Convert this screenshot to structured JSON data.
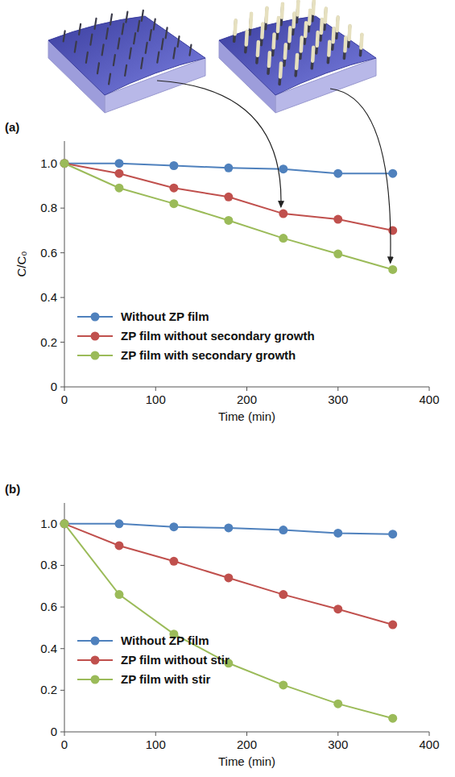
{
  "chart_data": [
    {
      "type": "line",
      "panel_label": "(a)",
      "x_label": "Time (min)",
      "y_label": "C/C₀",
      "x": [
        0,
        60,
        120,
        180,
        240,
        300,
        360
      ],
      "xlim": [
        0,
        400
      ],
      "xticks": [
        0,
        100,
        200,
        300,
        400
      ],
      "ylim": [
        0,
        1.1
      ],
      "yticks": [
        0,
        0.2,
        0.4,
        0.6,
        0.8,
        {
          "value": 1,
          "label": "1.0"
        }
      ],
      "grid": false,
      "legend": "lower left",
      "marker": "circle",
      "series": [
        {
          "name": "Without ZP film",
          "color": "#4f81bd",
          "values": [
            1.0,
            1.0,
            0.99,
            0.98,
            0.975,
            0.955,
            0.955
          ]
        },
        {
          "name": "ZP film without secondary growth",
          "color": "#c0504d",
          "values": [
            1.0,
            0.955,
            0.89,
            0.85,
            0.775,
            0.75,
            0.7
          ]
        },
        {
          "name": "ZP film with secondary growth",
          "color": "#9bbb59",
          "values": [
            1.0,
            0.89,
            0.82,
            0.745,
            0.665,
            0.595,
            0.525
          ]
        }
      ]
    },
    {
      "type": "line",
      "panel_label": "(b)",
      "x_label": "Time (min)",
      "x": [
        0,
        60,
        120,
        180,
        240,
        300,
        360
      ],
      "xlim": [
        0,
        400
      ],
      "xticks": [
        0,
        100,
        200,
        300,
        400
      ],
      "ylim": [
        0,
        1.1
      ],
      "yticks": [
        0,
        0.2,
        0.4,
        0.6,
        0.8,
        {
          "value": 1,
          "label": "1.0"
        }
      ],
      "grid": false,
      "legend": "lower left",
      "marker": "circle",
      "series": [
        {
          "name": "Without ZP film",
          "color": "#4f81bd",
          "values": [
            1.0,
            1.0,
            0.985,
            0.98,
            0.97,
            0.955,
            0.95
          ]
        },
        {
          "name": "ZP film without stir",
          "color": "#c0504d",
          "values": [
            1.0,
            0.895,
            0.82,
            0.74,
            0.66,
            0.59,
            0.515
          ]
        },
        {
          "name": "ZP film with stir",
          "color": "#9bbb59",
          "values": [
            1.0,
            0.66,
            0.47,
            0.33,
            0.225,
            0.135,
            0.065
          ]
        }
      ]
    }
  ]
}
